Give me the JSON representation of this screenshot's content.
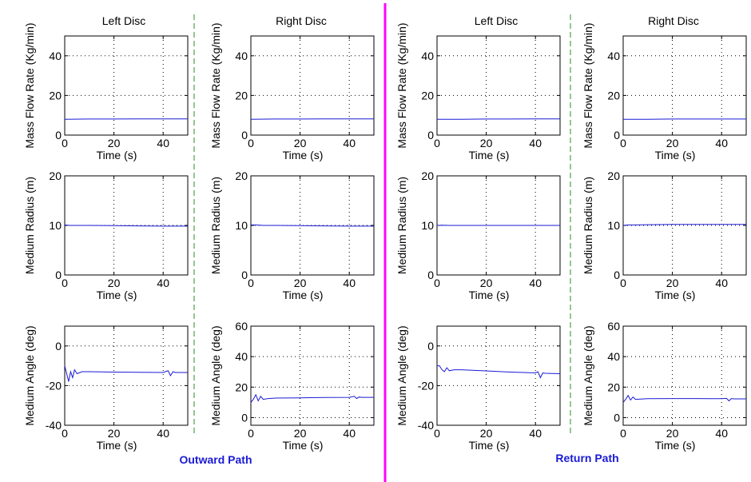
{
  "colors": {
    "series": "#1a1ad6",
    "grid": "#000000",
    "divider_main": "#ff00ff",
    "divider_dashed": "#2e8b2e",
    "path_label": "#1a1ad6"
  },
  "column_titles": [
    "Left Disc",
    "Right Disc",
    "Left Disc",
    "Right Disc"
  ],
  "path_labels": [
    "Outward Path",
    "Return Path"
  ],
  "chart_data": [
    {
      "type": "line",
      "path": "Outward Path",
      "disc": "Left Disc",
      "xlabel": "Time (s)",
      "ylabel": "Mass Flow Rate (Kg/min)",
      "xlim": [
        0,
        50
      ],
      "ylim": [
        0,
        50
      ],
      "xticks": [
        0,
        20,
        40
      ],
      "yticks": [
        0,
        20,
        40
      ],
      "grid": true,
      "series": [
        {
          "x": [
            0,
            10,
            20,
            30,
            40,
            50
          ],
          "y": [
            8,
            8.1,
            8.1,
            8.2,
            8.2,
            8.2
          ]
        }
      ]
    },
    {
      "type": "line",
      "path": "Outward Path",
      "disc": "Right Disc",
      "xlabel": "Time (s)",
      "ylabel": "Mass Flow Rate (Kg/min)",
      "xlim": [
        0,
        50
      ],
      "ylim": [
        0,
        50
      ],
      "xticks": [
        0,
        20,
        40
      ],
      "yticks": [
        0,
        20,
        40
      ],
      "grid": true,
      "series": [
        {
          "x": [
            0,
            10,
            20,
            30,
            40,
            50
          ],
          "y": [
            8,
            8.1,
            8.1,
            8.2,
            8.2,
            8.2
          ]
        }
      ]
    },
    {
      "type": "line",
      "path": "Return Path",
      "disc": "Left Disc",
      "xlabel": "Time (s)",
      "ylabel": "Mass Flow Rate (Kg/min)",
      "xlim": [
        0,
        50
      ],
      "ylim": [
        0,
        50
      ],
      "xticks": [
        0,
        20,
        40
      ],
      "yticks": [
        0,
        20,
        40
      ],
      "grid": true,
      "series": [
        {
          "x": [
            0,
            10,
            20,
            30,
            40,
            50
          ],
          "y": [
            8,
            8,
            8.1,
            8.1,
            8.2,
            8.2
          ]
        }
      ]
    },
    {
      "type": "line",
      "path": "Return Path",
      "disc": "Right Disc",
      "xlabel": "Time (s)",
      "ylabel": "Mass Flow Rate (Kg/min)",
      "xlim": [
        0,
        50
      ],
      "ylim": [
        0,
        50
      ],
      "xticks": [
        0,
        20,
        40
      ],
      "yticks": [
        0,
        20,
        40
      ],
      "grid": true,
      "series": [
        {
          "x": [
            0,
            10,
            20,
            30,
            40,
            50
          ],
          "y": [
            8,
            8,
            8.1,
            8.1,
            8.1,
            8.1
          ]
        }
      ]
    },
    {
      "type": "line",
      "path": "Outward Path",
      "disc": "Left Disc",
      "xlabel": "Time (s)",
      "ylabel": "Medium Radius (m)",
      "xlim": [
        0,
        50
      ],
      "ylim": [
        0,
        20
      ],
      "xticks": [
        0,
        20,
        40
      ],
      "yticks": [
        0,
        10,
        20
      ],
      "grid": true,
      "series": [
        {
          "x": [
            0,
            2,
            5,
            10,
            20,
            30,
            40,
            45,
            50
          ],
          "y": [
            10.1,
            10.0,
            10.0,
            10.0,
            9.95,
            9.9,
            9.85,
            9.85,
            9.85
          ]
        }
      ]
    },
    {
      "type": "line",
      "path": "Outward Path",
      "disc": "Right Disc",
      "xlabel": "Time (s)",
      "ylabel": "Medium Radius (m)",
      "xlim": [
        0,
        50
      ],
      "ylim": [
        0,
        20
      ],
      "xticks": [
        0,
        20,
        40
      ],
      "yticks": [
        0,
        10,
        20
      ],
      "grid": true,
      "series": [
        {
          "x": [
            0,
            2,
            5,
            10,
            20,
            30,
            40,
            45,
            50
          ],
          "y": [
            10.1,
            10.1,
            10.0,
            10.0,
            9.95,
            9.9,
            9.85,
            9.85,
            9.85
          ]
        }
      ]
    },
    {
      "type": "line",
      "path": "Return Path",
      "disc": "Left Disc",
      "xlabel": "Time (s)",
      "ylabel": "Medium Radius (m)",
      "xlim": [
        0,
        50
      ],
      "ylim": [
        0,
        20
      ],
      "xticks": [
        0,
        20,
        40
      ],
      "yticks": [
        0,
        10,
        20
      ],
      "grid": true,
      "series": [
        {
          "x": [
            0,
            2,
            5,
            10,
            20,
            30,
            40,
            45,
            50
          ],
          "y": [
            10.0,
            10.05,
            10.0,
            10.0,
            10.0,
            10.0,
            10.0,
            10.0,
            10.0
          ]
        }
      ]
    },
    {
      "type": "line",
      "path": "Return Path",
      "disc": "Right Disc",
      "xlabel": "Time (s)",
      "ylabel": "Medium Radius (m)",
      "xlim": [
        0,
        50
      ],
      "ylim": [
        0,
        20
      ],
      "xticks": [
        0,
        20,
        40
      ],
      "yticks": [
        0,
        10,
        20
      ],
      "grid": true,
      "series": [
        {
          "x": [
            0,
            2,
            5,
            10,
            20,
            30,
            40,
            45,
            50
          ],
          "y": [
            10.0,
            10.1,
            10.1,
            10.15,
            10.2,
            10.2,
            10.2,
            10.2,
            10.2
          ]
        }
      ]
    },
    {
      "type": "line",
      "path": "Outward Path",
      "disc": "Left Disc",
      "xlabel": "Time (s)",
      "ylabel": "Medium Angle (deg)",
      "xlim": [
        0,
        50
      ],
      "ylim": [
        -40,
        10
      ],
      "xticks": [
        0,
        20,
        40
      ],
      "yticks": [
        -40,
        -20,
        0
      ],
      "grid": true,
      "series": [
        {
          "x": [
            0,
            0.8,
            1.6,
            2.4,
            3.2,
            4,
            5,
            7,
            10,
            20,
            30,
            40,
            42,
            43,
            44,
            45,
            50
          ],
          "y": [
            -10,
            -14,
            -18,
            -13,
            -16,
            -12,
            -14,
            -13,
            -13,
            -13.2,
            -13.3,
            -13.4,
            -12.5,
            -15,
            -13,
            -13.4,
            -13.4
          ]
        }
      ]
    },
    {
      "type": "line",
      "path": "Outward Path",
      "disc": "Right Disc",
      "xlabel": "Time (s)",
      "ylabel": "Medium Angle (deg)",
      "xlim": [
        0,
        50
      ],
      "ylim": [
        -5,
        60
      ],
      "xticks": [
        0,
        20,
        40
      ],
      "yticks": [
        0,
        20,
        40,
        60
      ],
      "grid": true,
      "series": [
        {
          "x": [
            0,
            1,
            2,
            3,
            4,
            5,
            7,
            10,
            20,
            30,
            40,
            42,
            43,
            44,
            45,
            50
          ],
          "y": [
            10,
            12,
            15,
            11,
            14,
            12,
            12.5,
            12.8,
            13,
            13.2,
            13.3,
            14,
            12.5,
            13.5,
            13.3,
            13.3
          ]
        }
      ]
    },
    {
      "type": "line",
      "path": "Return Path",
      "disc": "Left Disc",
      "xlabel": "Time (s)",
      "ylabel": "Medium Angle (deg)",
      "xlim": [
        0,
        50
      ],
      "ylim": [
        -40,
        10
      ],
      "xticks": [
        0,
        20,
        40
      ],
      "yticks": [
        -40,
        -20,
        0
      ],
      "grid": true,
      "series": [
        {
          "x": [
            0,
            1,
            2,
            3,
            4,
            5,
            7,
            10,
            20,
            30,
            40,
            41,
            42,
            43,
            44,
            50
          ],
          "y": [
            -10,
            -10,
            -12,
            -13,
            -11,
            -12.5,
            -12,
            -12,
            -12.6,
            -13.2,
            -13.6,
            -13,
            -16,
            -13.6,
            -13.8,
            -14
          ]
        }
      ]
    },
    {
      "type": "line",
      "path": "Return Path",
      "disc": "Right Disc",
      "xlabel": "Time (s)",
      "ylabel": "Medium Angle (deg)",
      "xlim": [
        0,
        50
      ],
      "ylim": [
        -5,
        60
      ],
      "xticks": [
        0,
        20,
        40
      ],
      "yticks": [
        0,
        20,
        40,
        60
      ],
      "grid": true,
      "series": [
        {
          "x": [
            0,
            1,
            2,
            3,
            4,
            5,
            7,
            10,
            20,
            30,
            40,
            42,
            43,
            44,
            45,
            50
          ],
          "y": [
            10,
            12,
            14.5,
            11.5,
            13.5,
            12,
            12.2,
            12.4,
            12.5,
            12.5,
            12.4,
            12.6,
            11,
            12.5,
            12.3,
            12.3
          ]
        }
      ]
    }
  ]
}
